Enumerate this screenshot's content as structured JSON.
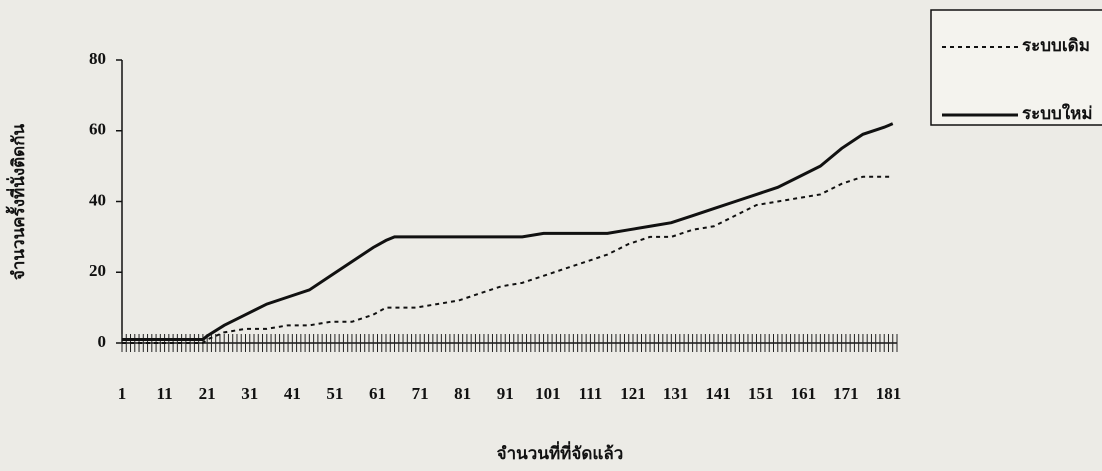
{
  "chart_data": {
    "type": "line",
    "x_label": "จำนวนที่ที่จัดแล้ว",
    "y_label": "จำนวนครั้งที่นั่งติดกัน",
    "x": [
      1,
      5,
      10,
      15,
      20,
      21,
      25,
      30,
      35,
      40,
      45,
      50,
      55,
      60,
      63,
      65,
      70,
      75,
      80,
      85,
      90,
      95,
      100,
      105,
      110,
      115,
      120,
      125,
      130,
      135,
      140,
      145,
      150,
      155,
      160,
      165,
      170,
      175,
      180,
      182
    ],
    "series": [
      {
        "name": "ระบบเดิม",
        "color": "#111111",
        "dash": true,
        "values": [
          0,
          0,
          0,
          0,
          0,
          1,
          3,
          4,
          4,
          5,
          5,
          6,
          6,
          8,
          10,
          10,
          10,
          11,
          12,
          14,
          16,
          17,
          19,
          21,
          23,
          25,
          28,
          30,
          30,
          32,
          33,
          36,
          39,
          40,
          41,
          42,
          45,
          47,
          47,
          47
        ]
      },
      {
        "name": "ระบบใหม่",
        "color": "#111111",
        "dash": false,
        "values": [
          1,
          1,
          1,
          1,
          1,
          2,
          5,
          8,
          11,
          13,
          15,
          19,
          23,
          27,
          29,
          30,
          30,
          30,
          30,
          30,
          30,
          30,
          31,
          31,
          31,
          31,
          32,
          33,
          34,
          36,
          38,
          40,
          42,
          44,
          47,
          50,
          55,
          59,
          61,
          62
        ]
      }
    ],
    "xlim": [
      1,
      183
    ],
    "xticks": [
      1,
      11,
      21,
      31,
      41,
      51,
      61,
      71,
      81,
      91,
      101,
      111,
      121,
      131,
      141,
      151,
      161,
      171,
      181
    ],
    "ylim": [
      0,
      80
    ],
    "yticks": [
      0,
      20,
      40,
      60,
      80
    ],
    "legend": "top-right"
  }
}
